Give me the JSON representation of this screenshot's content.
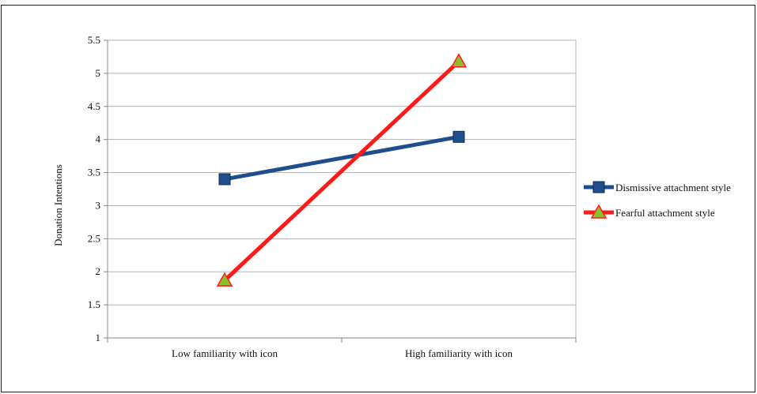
{
  "chart_data": {
    "type": "line",
    "categories": [
      "Low familiarity with icon",
      "High familiarity with icon"
    ],
    "series": [
      {
        "name": "Dismissive attachment style",
        "values": [
          3.4,
          4.04
        ],
        "color": "#1f4e8c",
        "marker": "square"
      },
      {
        "name": "Fearful attachment style",
        "values": [
          1.87,
          5.18
        ],
        "color": "#ff1a1a",
        "marker": "triangle",
        "marker_fill": "#8bbf2e"
      }
    ],
    "title": "",
    "xlabel": "",
    "ylabel": "Donation Intentions",
    "ylim": [
      1,
      5.5
    ],
    "yticks": [
      "1",
      "1.5",
      "2",
      "2.5",
      "3",
      "3.5",
      "4",
      "4.5",
      "5",
      "5.5"
    ],
    "grid": true,
    "legend_position": "right"
  }
}
